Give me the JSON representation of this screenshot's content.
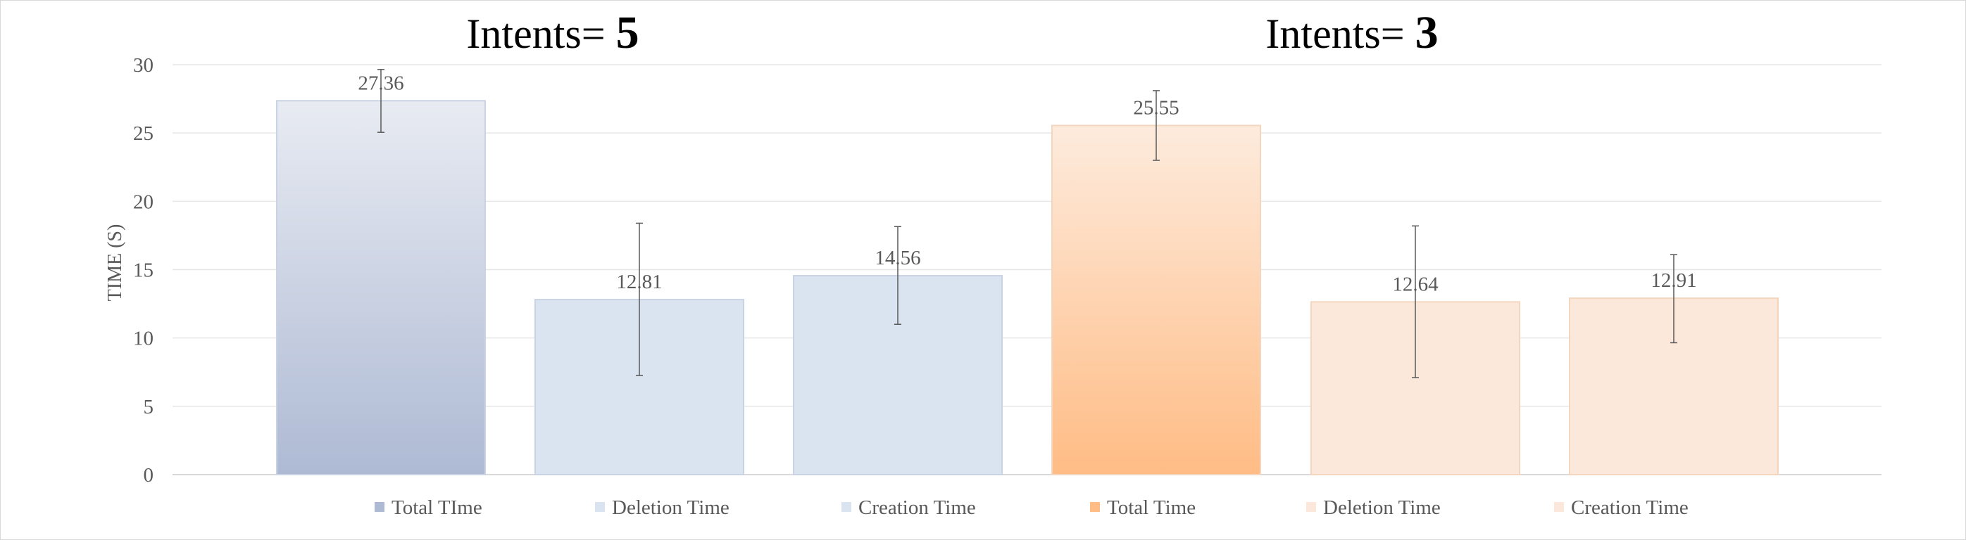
{
  "chart_data": {
    "type": "bar",
    "ylabel": "TIME (S)",
    "ylim": [
      0,
      30
    ],
    "yticks": [
      0,
      5,
      10,
      15,
      20,
      25,
      30
    ],
    "grid": true,
    "legend_position": "bottom",
    "groups": [
      {
        "title_prefix": "Intents= ",
        "title_value": "5",
        "bars": [
          {
            "series": "Total TIme",
            "value": 27.36,
            "label": "27.36",
            "error_low": 25.05,
            "error_high": 29.65,
            "color_top": "#E8EBF2",
            "color_bottom": "#AEBAD4"
          },
          {
            "series": "Deletion Time",
            "value": 12.81,
            "label": "12.81",
            "error_low": 7.25,
            "error_high": 18.4,
            "color_top": "#DAE3F0",
            "color_bottom": "#DAE3F0"
          },
          {
            "series": "Creation Time",
            "value": 14.56,
            "label": "14.56",
            "error_low": 11.0,
            "error_high": 18.15,
            "color_top": "#DAE3F0",
            "color_bottom": "#DAE3F0"
          }
        ]
      },
      {
        "title_prefix": "Intents= ",
        "title_value": "3",
        "bars": [
          {
            "series": "Total Time",
            "value": 25.55,
            "label": "25.55",
            "error_low": 23.0,
            "error_high": 28.1,
            "color_top": "#FDEBDD",
            "color_bottom": "#FFBC85"
          },
          {
            "series": "Deletion Time",
            "value": 12.64,
            "label": "12.64",
            "error_low": 7.1,
            "error_high": 18.2,
            "color_top": "#FCE8DA",
            "color_bottom": "#FCE8DA"
          },
          {
            "series": "Creation Time",
            "value": 12.91,
            "label": "12.91",
            "error_low": 9.65,
            "error_high": 16.1,
            "color_top": "#FCE8DA",
            "color_bottom": "#FCE8DA"
          }
        ]
      }
    ]
  },
  "colors": {
    "grid": "#E6E6E6",
    "axis": "#D9D9D9",
    "error_bar": "#595959",
    "bar_border_blue": "#C9D3E3",
    "bar_border_orange": "#F4D5BE",
    "frame": "#D9D9D9"
  }
}
